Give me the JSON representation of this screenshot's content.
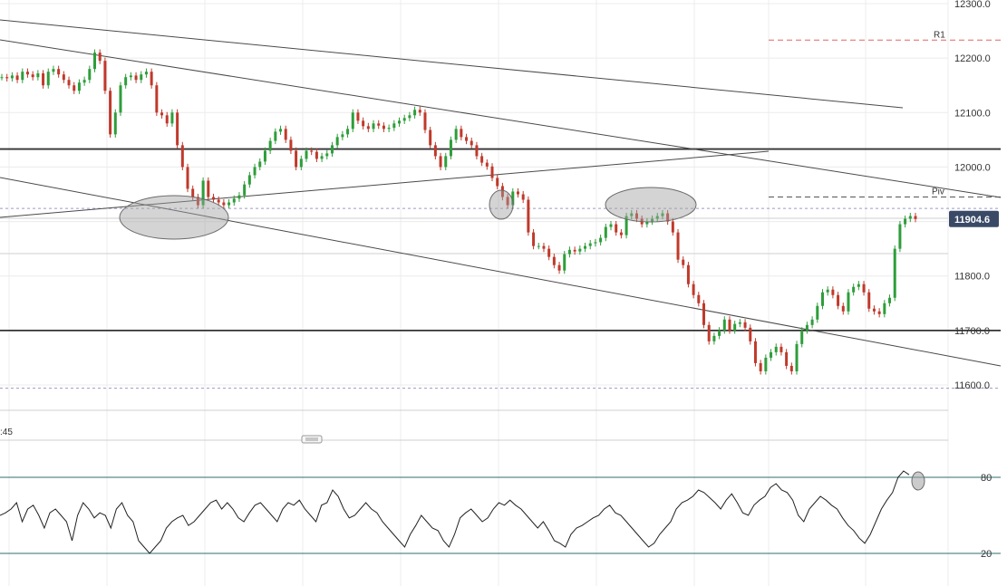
{
  "chart_data": [
    {
      "type": "line",
      "title": "",
      "xlabel": "",
      "ylabel": "",
      "ylim": [
        11570,
        12305
      ],
      "y_ticks": [
        "12300.0",
        "12200.0",
        "12100.0",
        "12000.0",
        "11900.0",
        "11800.0",
        "11700.0",
        "11600.0"
      ],
      "grid": true,
      "last_price": "11904.6",
      "horizontal_levels": [
        {
          "name": "R1",
          "value": 12233,
          "style": "dashed",
          "color": "#e06666"
        },
        {
          "name": "Piv",
          "value": 11945,
          "style": "dashed",
          "color": "#555555"
        },
        {
          "name": "",
          "value": 12033,
          "style": "solid",
          "color": "#333333"
        },
        {
          "name": "",
          "value": 11700,
          "style": "solid",
          "color": "#333333"
        },
        {
          "name": "",
          "value": 11924,
          "style": "dotted",
          "color": "#9b9bc8"
        },
        {
          "name": "",
          "value": 11594,
          "style": "dotted",
          "color": "#9b9bc8"
        }
      ],
      "series": [
        {
          "values": [
            12165,
            12163,
            12168,
            12160,
            12175,
            12170,
            12165,
            12172,
            12150,
            12175,
            12180,
            12170,
            12160,
            12150,
            12140,
            12155,
            12160,
            12180,
            12210,
            12195,
            12140,
            12060,
            12100,
            12150,
            12165,
            12168,
            12160,
            12170,
            12175,
            12150,
            12100,
            12095,
            12080,
            12100,
            12040,
            12000,
            11960,
            11945,
            11930,
            11975,
            11945,
            11940,
            11935,
            11930,
            11935,
            11942,
            11948,
            11968,
            11985,
            12000,
            12010,
            12030,
            12048,
            12065,
            12070,
            12050,
            12030,
            12000,
            12015,
            12030,
            12028,
            12015,
            12020,
            12025,
            12040,
            12055,
            12060,
            12070,
            12100,
            12085,
            12075,
            12070,
            12080,
            12076,
            12070,
            12072,
            12080,
            12085,
            12090,
            12095,
            12105,
            12100,
            12068,
            12040,
            12020,
            12000,
            12020,
            12050,
            12070,
            12055,
            12048,
            12040,
            12020,
            12008,
            12001,
            11980,
            11965,
            11945,
            11930,
            11955,
            11950,
            11940,
            11880,
            11855,
            11855,
            11850,
            11835,
            11820,
            11810,
            11840,
            11848,
            11845,
            11850,
            11855,
            11860,
            11862,
            11870,
            11890,
            11895,
            11880,
            11875,
            11910,
            11915,
            11905,
            11895,
            11900,
            11905,
            11910,
            11915,
            11900,
            11880,
            11830,
            11820,
            11785,
            11765,
            11750,
            11710,
            11680,
            11690,
            11700,
            11720,
            11700,
            11712,
            11715,
            11705,
            11680,
            11640,
            11625,
            11650,
            11660,
            11670,
            11660,
            11635,
            11625,
            11675,
            11700,
            11710,
            11720,
            11745,
            11770,
            11775,
            11765,
            11745,
            11735,
            11770,
            11780,
            11785,
            11770,
            11740,
            11735,
            11730,
            11750,
            11760,
            11850,
            11895,
            11905,
            11910,
            11904.6
          ]
        }
      ]
    },
    {
      "type": "line",
      "title": "",
      "xlabel": "",
      "ylabel": "",
      "ylim": [
        0,
        100
      ],
      "y_ticks": [
        "80",
        "20"
      ],
      "levels": [
        80,
        20
      ],
      "time_label_fragment": ":45",
      "series": [
        {
          "values": [
            50,
            52,
            55,
            60,
            45,
            55,
            58,
            50,
            40,
            52,
            55,
            50,
            45,
            30,
            50,
            60,
            55,
            48,
            52,
            50,
            40,
            55,
            60,
            50,
            45,
            30,
            25,
            20,
            25,
            30,
            40,
            45,
            48,
            50,
            42,
            45,
            50,
            55,
            60,
            62,
            55,
            60,
            55,
            48,
            45,
            52,
            58,
            60,
            55,
            50,
            45,
            55,
            60,
            58,
            62,
            55,
            50,
            45,
            58,
            60,
            70,
            65,
            55,
            48,
            50,
            55,
            60,
            55,
            52,
            45,
            40,
            35,
            30,
            25,
            35,
            42,
            50,
            45,
            40,
            38,
            30,
            25,
            35,
            48,
            52,
            55,
            50,
            45,
            48,
            55,
            60,
            58,
            62,
            58,
            55,
            50,
            45,
            40,
            45,
            38,
            30,
            28,
            25,
            35,
            40,
            42,
            45,
            48,
            50,
            55,
            58,
            52,
            50,
            45,
            40,
            35,
            30,
            25,
            28,
            35,
            40,
            45,
            55,
            60,
            62,
            65,
            70,
            68,
            64,
            60,
            55,
            62,
            67,
            60,
            52,
            50,
            58,
            62,
            65,
            72,
            75,
            70,
            68,
            62,
            50,
            45,
            55,
            60,
            65,
            62,
            58,
            55,
            48,
            42,
            38,
            32,
            28,
            35,
            45,
            55,
            62,
            68,
            80,
            85,
            82
          ]
        }
      ]
    }
  ]
}
